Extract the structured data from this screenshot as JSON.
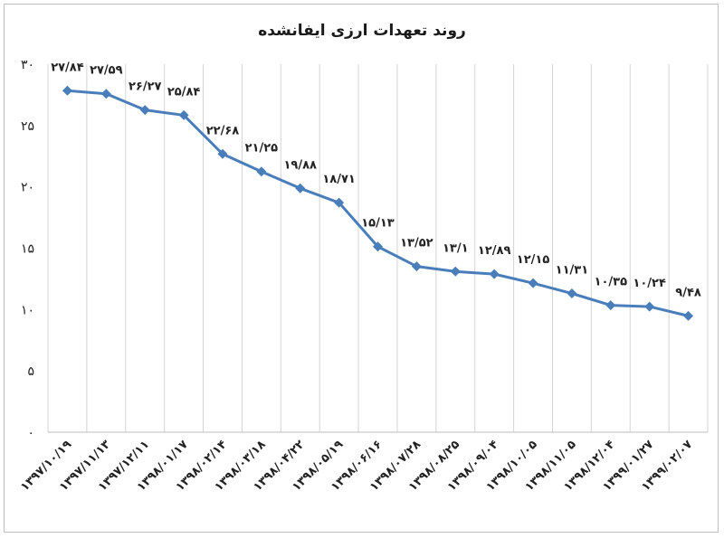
{
  "chart_data": {
    "type": "line",
    "title": "روند تعهدات ارزی ایفانشده",
    "categories": [
      "۱۳۹۷/۱۰/۱۹",
      "۱۳۹۷/۱۱/۱۳",
      "۱۳۹۷/۱۲/۱۱",
      "۱۳۹۸/۰۱/۱۷",
      "۱۳۹۸/۰۲/۱۴",
      "۱۳۹۸/۰۳/۱۸",
      "۱۳۹۸/۰۴/۲۲",
      "۱۳۹۸/۰۵/۱۹",
      "۱۳۹۸/۰۶/۱۶",
      "۱۳۹۸/۰۷/۲۸",
      "۱۳۹۸/۰۸/۲۵",
      "۱۳۹۸/۰۹/۰۴",
      "۱۳۹۸/۱۰/۰۵",
      "۱۳۹۸/۱۱/۰۵",
      "۱۳۹۸/۱۲/۰۴",
      "۱۳۹۹/۰۱/۲۷",
      "۱۳۹۹/۰۲/۰۷"
    ],
    "values": [
      27.84,
      27.59,
      26.27,
      25.84,
      22.68,
      21.25,
      19.88,
      18.71,
      15.13,
      13.52,
      13.1,
      12.89,
      12.15,
      11.31,
      10.35,
      10.24,
      9.48
    ],
    "data_labels": [
      "۲۷/۸۴",
      "۲۷/۵۹",
      "۲۶/۲۷",
      "۲۵/۸۴",
      "۲۲/۶۸",
      "۲۱/۲۵",
      "۱۹/۸۸",
      "۱۸/۷۱",
      "۱۵/۱۳",
      "۱۳/۵۲",
      "۱۳/۱",
      "۱۲/۸۹",
      "۱۲/۱۵",
      "۱۱/۳۱",
      "۱۰/۳۵",
      "۱۰/۲۴",
      "۹/۴۸"
    ],
    "yticks": [
      0,
      5,
      10,
      15,
      20,
      25,
      30
    ],
    "ytick_labels": [
      "۰",
      "۵",
      "۱۰",
      "۱۵",
      "۲۰",
      "۲۵",
      "۳۰"
    ],
    "ylim": [
      0,
      30
    ],
    "xlabel": "",
    "ylabel": "",
    "grid": "vertical",
    "legend": "none",
    "colors": {
      "line": "#4a7ebb",
      "marker": "#4a7ebb",
      "grid": "#d4d4d4",
      "axis": "#bfbfbf"
    }
  }
}
